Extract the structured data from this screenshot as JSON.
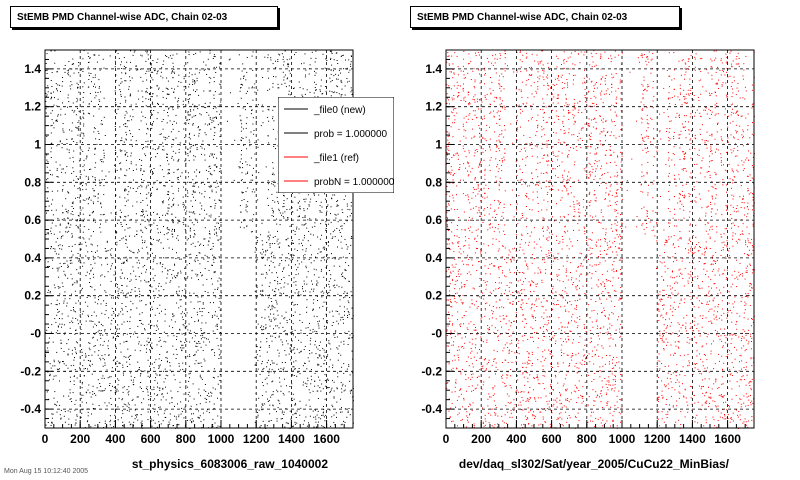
{
  "chart_data": [
    {
      "type": "scatter",
      "title": "StEMB PMD Channel-wise ADC, Chain 02-03",
      "xlabel": "st_physics_6083006_raw_1040002",
      "ylabel": "",
      "xlim": [
        0,
        1750
      ],
      "ylim": [
        -0.5,
        1.5
      ],
      "x_ticks": [
        "0",
        "200",
        "400",
        "600",
        "800",
        "1000",
        "1200",
        "1400",
        "1600"
      ],
      "y_ticks": [
        "-0.4",
        "-0.2",
        "-0",
        "0.2",
        "0.4",
        "0.6",
        "0.8",
        "1",
        "1.2",
        "1.4"
      ],
      "grid": true,
      "marker_color": "#000000",
      "legend": {
        "placement": "top-right",
        "entries": [
          {
            "label": "_file0 (new)",
            "color": "#000000"
          },
          {
            "label": "prob = 1.000000",
            "color": "#000000"
          },
          {
            "label": "_file1 (ref)",
            "color": "#ff0000"
          },
          {
            "label": "probN = 1.000000",
            "color": "#ff0000"
          }
        ]
      },
      "series": [
        {
          "values_description_ranges": [
            [
              0,
              1750
            ]
          ]
        }
      ]
    },
    {
      "type": "scatter",
      "title": "StEMB PMD Channel-wise ADC, Chain 02-03",
      "xlabel": "dev/daq_sl302/Sat/year_2005/CuCu22_MinBias/",
      "ylabel": "",
      "xlim": [
        0,
        1750
      ],
      "ylim": [
        -0.5,
        1.5
      ],
      "x_ticks": [
        "0",
        "200",
        "400",
        "600",
        "800",
        "1000",
        "1200",
        "1400",
        "1600"
      ],
      "y_ticks": [
        "-0.4",
        "-0.2",
        "-0",
        "0.2",
        "0.4",
        "0.6",
        "0.8",
        "1",
        "1.2",
        "1.4"
      ],
      "grid": true,
      "marker_color": "#ff0000"
    }
  ],
  "footer_text": "Mon Aug 15 10:12:40 2005"
}
